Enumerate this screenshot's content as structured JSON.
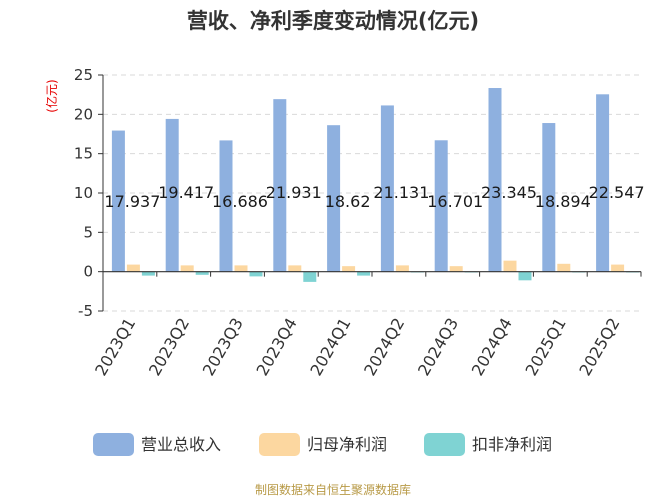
{
  "chart_data": {
    "type": "bar",
    "title": "营收、净利季度变动情况(亿元)",
    "ylabel": "(亿元)",
    "ylim": [
      -5,
      25
    ],
    "yticks": [
      -5,
      0,
      5,
      10,
      15,
      20,
      25
    ],
    "grid": true,
    "legend_position": "bottom",
    "categories": [
      "2023Q1",
      "2023Q2",
      "2023Q3",
      "2023Q4",
      "2024Q1",
      "2024Q2",
      "2024Q3",
      "2024Q4",
      "2025Q1",
      "2025Q2"
    ],
    "series": [
      {
        "name": "营业总收入",
        "color": "#8eb0df",
        "values": [
          17.937,
          19.417,
          16.686,
          21.931,
          18.62,
          21.131,
          16.701,
          23.345,
          18.894,
          22.547
        ],
        "labels": [
          "17.937",
          "19.417",
          "16.686",
          "21.931",
          "18.62",
          "21.131",
          "16.701",
          "23.345",
          "18.894",
          "22.547"
        ]
      },
      {
        "name": "归母净利润",
        "color": "#fcd7a0",
        "values": [
          0.9,
          0.8,
          0.8,
          0.8,
          0.7,
          0.8,
          0.7,
          1.4,
          1.0,
          0.9
        ]
      },
      {
        "name": "扣非净利润",
        "color": "#7fd3d3",
        "values": [
          -0.5,
          -0.4,
          -0.6,
          -1.3,
          -0.5,
          -0.1,
          -0.1,
          -1.1,
          -0.1,
          -0.1
        ]
      }
    ]
  },
  "colors": {
    "title": "#333333",
    "unit_label": "#e60000",
    "grid": "#d9d9d9",
    "axis": "#333333",
    "source": "#b89a47"
  },
  "source_text": "制图数据来自恒生聚源数据库"
}
